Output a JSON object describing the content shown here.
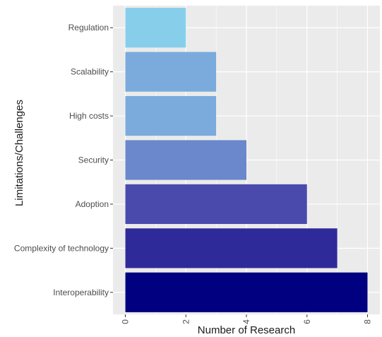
{
  "chart_data": {
    "type": "bar",
    "orientation": "horizontal",
    "title": "",
    "xlabel": "Number of Research",
    "ylabel": "Limitations/Challenges",
    "xlim": [
      0,
      8
    ],
    "x_ticks": [
      0,
      2,
      4,
      6,
      8
    ],
    "grid": true,
    "legend": "none",
    "categories": [
      "Regulation",
      "Scalability",
      "High costs",
      "Security",
      "Adoption",
      "Complexity of technology",
      "Interoperability"
    ],
    "values": [
      2,
      3,
      3,
      4,
      6,
      7,
      8
    ],
    "colors": [
      "#87ceeb",
      "#7aabdc",
      "#7aabdc",
      "#6a88cb",
      "#4a4aad",
      "#2f2a9a",
      "#000080"
    ],
    "panel_background": "#ebebeb",
    "gridline_color": "#ffffff"
  }
}
